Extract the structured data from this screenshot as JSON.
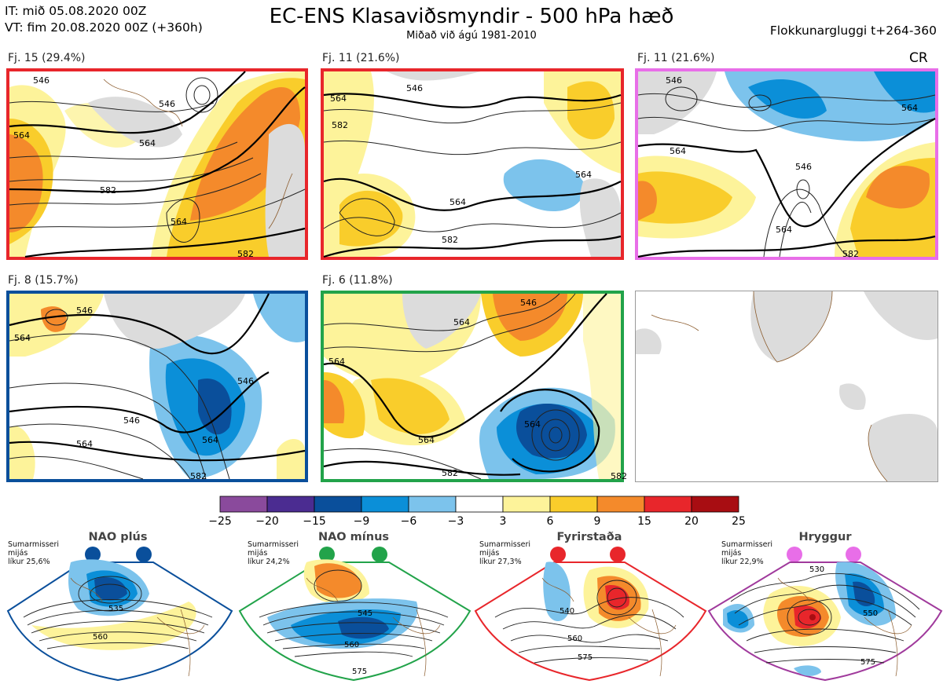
{
  "header": {
    "issue_time": "IT: mið 05.08.2020 00Z",
    "valid_time": "VT: fim 20.08.2020 00Z  (+360h)",
    "title": "EC-ENS Klasaviðsmyndir - 500 hPa hæð",
    "subtitle": "Miðað við ágú 1981-2010",
    "window": "Flokkunargluggi t+264-360",
    "cr_label": "CR"
  },
  "clusters": [
    {
      "label": "Fj. 15 (29.4%)",
      "frame_color": "#e8262b",
      "contours": [
        "546",
        "546",
        "564",
        "564",
        "582",
        "564",
        "582"
      ]
    },
    {
      "label": "Fj. 11 (21.6%)",
      "frame_color": "#e8262b",
      "contours": [
        "546",
        "564",
        "582",
        "564",
        "564",
        "582"
      ]
    },
    {
      "label": "Fj. 11 (21.6%)",
      "frame_color": "#e86ee8",
      "contours": [
        "546",
        "564",
        "546",
        "564",
        "564",
        "582"
      ]
    },
    {
      "label": "Fj. 8 (15.7%)",
      "frame_color": "#0a4f9b",
      "contours": [
        "546",
        "564",
        "546",
        "546",
        "564",
        "564",
        "582"
      ]
    },
    {
      "label": "Fj. 6 (11.8%)",
      "frame_color": "#22a34a",
      "contours": [
        "564",
        "546",
        "564",
        "564",
        "564",
        "582",
        "582"
      ]
    }
  ],
  "colorbar": {
    "colors": [
      "#8a4a9c",
      "#4b2c91",
      "#0a4f9b",
      "#0b8fd8",
      "#7cc3ec",
      "#ffffff",
      "#fdf39a",
      "#f9cd2b",
      "#f48a2b",
      "#e8262b",
      "#a80d12"
    ],
    "labels": [
      "−25",
      "−20",
      "−15",
      "−9",
      "−6",
      "−3",
      "3",
      "6",
      "9",
      "15",
      "20",
      "25"
    ]
  },
  "regimes": [
    {
      "name": "NAO plús",
      "season": "Sumarmisseri",
      "average": "mijás",
      "probability": "líkur 25,6%",
      "color": "#0a4f9b",
      "contours": [
        "535",
        "560"
      ]
    },
    {
      "name": "NAO mínus",
      "season": "Sumarmisseri",
      "average": "mijás",
      "probability": "líkur 24,2%",
      "color": "#22a34a",
      "contours": [
        "545",
        "560",
        "575"
      ]
    },
    {
      "name": "Fyrirstaða",
      "season": "Sumarmisseri",
      "average": "mijás",
      "probability": "líkur 27,3%",
      "color": "#e8262b",
      "contours": [
        "540",
        "560",
        "575"
      ]
    },
    {
      "name": "Hryggur",
      "season": "Sumarmisseri",
      "average": "mijás",
      "probability": "líkur 22,9%",
      "color": "#a03a9c",
      "contours": [
        "530",
        "550",
        "575"
      ]
    }
  ]
}
